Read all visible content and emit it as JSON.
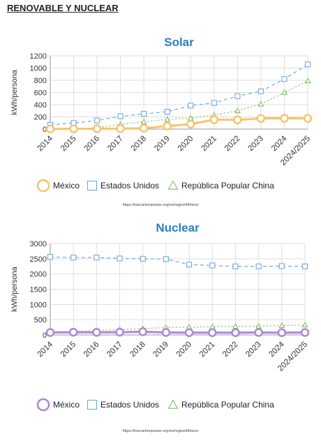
{
  "page_title": "RENOVABLE Y NUCLEAR",
  "chart_data": [
    {
      "type": "line",
      "title": "Solar",
      "xlabel": "",
      "ylabel": "kWh/persona",
      "categories": [
        "2014",
        "2015",
        "2016",
        "2017",
        "2018",
        "2019",
        "2020",
        "2021",
        "2022",
        "2023",
        "2024",
        "2024/2025"
      ],
      "ylim": [
        0,
        1200
      ],
      "yticks": [
        0,
        200,
        400,
        600,
        800,
        1000,
        1200
      ],
      "grid": true,
      "legend_position": "bottom",
      "series": [
        {
          "name": "México",
          "color": "#f7c46c",
          "marker": "circle",
          "style": "solid",
          "values": [
            3,
            5,
            6,
            8,
            15,
            50,
            80,
            155,
            150,
            175,
            178,
            175
          ]
        },
        {
          "name": "Estados Unidos",
          "color": "#6fa8dc",
          "marker": "square",
          "style": "dashed",
          "values": [
            70,
            100,
            140,
            210,
            250,
            285,
            385,
            430,
            540,
            620,
            820,
            1060
          ]
        },
        {
          "name": "República Popular China",
          "color": "#7fbf5f",
          "marker": "triangle",
          "style": "dotted",
          "values": [
            2,
            5,
            20,
            80,
            120,
            160,
            180,
            230,
            300,
            410,
            600,
            790
          ]
        }
      ],
      "source": "https://lowcarbonpower.org/es/region/México"
    },
    {
      "type": "line",
      "title": "Nuclear",
      "xlabel": "",
      "ylabel": "kWh/persona",
      "categories": [
        "2014",
        "2015",
        "2016",
        "2017",
        "2018",
        "2019",
        "2020",
        "2021",
        "2022",
        "2023",
        "2024",
        "2024/2025"
      ],
      "ylim": [
        0,
        3000
      ],
      "yticks": [
        0,
        500,
        1000,
        1500,
        2000,
        2500,
        3000
      ],
      "grid": true,
      "legend_position": "bottom",
      "series": [
        {
          "name": "México",
          "color": "#b084d8",
          "marker": "circle",
          "style": "solid",
          "values": [
            80,
            90,
            85,
            90,
            105,
            80,
            75,
            75,
            75,
            80,
            75,
            80
          ]
        },
        {
          "name": "Estados Unidos",
          "color": "#6fa8dc",
          "marker": "square",
          "style": "dashed",
          "values": [
            2560,
            2540,
            2540,
            2510,
            2500,
            2490,
            2310,
            2280,
            2250,
            2250,
            2260,
            2250
          ]
        },
        {
          "name": "República Popular China",
          "color": "#7fbf5f",
          "marker": "triangle",
          "style": "dotted",
          "values": [
            95,
            115,
            145,
            175,
            210,
            240,
            255,
            270,
            280,
            290,
            310,
            330
          ]
        }
      ],
      "source": "https://lowcarbonpower.org/es/region/México"
    }
  ]
}
